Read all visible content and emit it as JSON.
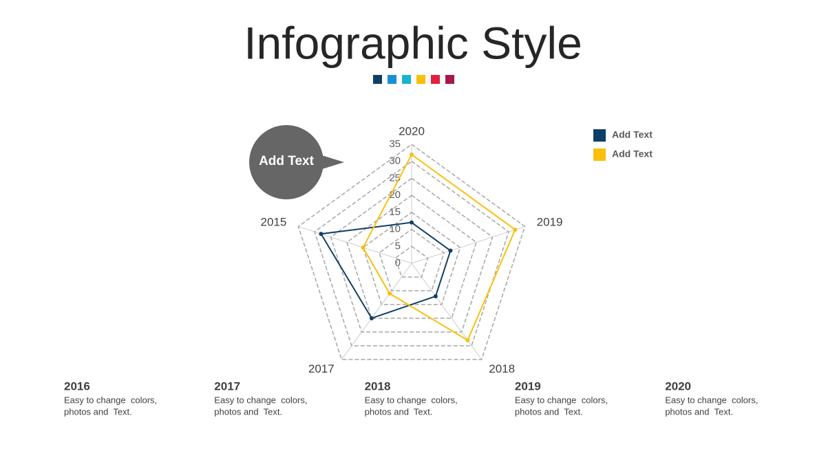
{
  "header": {
    "title": "Infographic Style"
  },
  "callout": {
    "text": "Add Text"
  },
  "chart_data": {
    "type": "radar",
    "categories": [
      "2020",
      "2019",
      "2018",
      "2017",
      "2015"
    ],
    "series": [
      {
        "name": "Add Text",
        "color": "#0e3f66",
        "values": [
          12,
          12,
          12,
          20,
          28
        ]
      },
      {
        "name": "Add Text",
        "color": "#fbbf0c",
        "values": [
          32,
          32,
          28,
          11,
          15
        ]
      }
    ],
    "rlim": [
      0,
      35
    ],
    "rticks": [
      0,
      5,
      10,
      15,
      20,
      25,
      30,
      35
    ],
    "grid": true,
    "legend": "top-right"
  },
  "items": [
    {
      "year": "2016",
      "lines": [
        "Easy to change  colors,",
        "photos and  Text."
      ]
    },
    {
      "year": "2017",
      "lines": [
        "Easy to change  colors,",
        "photos and  Text."
      ]
    },
    {
      "year": "2018",
      "lines": [
        "Easy to change  colors,",
        "photos and  Text."
      ]
    },
    {
      "year": "2019",
      "lines": [
        "Easy to change  colors,",
        "photos and  Text."
      ]
    },
    {
      "year": "2020",
      "lines": [
        "Easy to change  colors,",
        "photos and  Text."
      ]
    }
  ]
}
